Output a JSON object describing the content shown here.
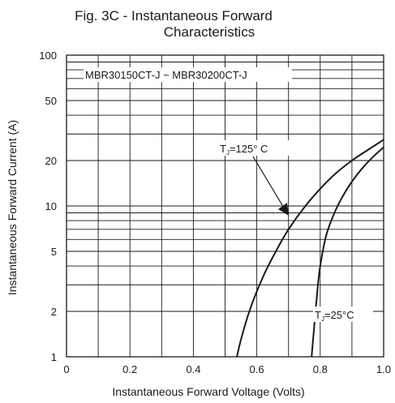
{
  "chart_data": {
    "type": "line",
    "title_line1": "Fig. 3C - Instantaneous Forward",
    "title_line2": "Characteristics",
    "xlabel": "Instantaneous Forward Voltage (Volts)",
    "ylabel": "Instantaneous Forward Current (A)",
    "xlim": [
      0,
      1.0
    ],
    "ylim": [
      1,
      100
    ],
    "yscale": "log",
    "grid": true,
    "x_ticks": [
      0,
      0.2,
      0.4,
      0.6,
      0.8,
      1.0
    ],
    "x_tick_labels": [
      "0",
      "0.2",
      "0.4",
      "0.6",
      "0.8",
      "1.0"
    ],
    "y_ticks": [
      1,
      2,
      5,
      10,
      20,
      50,
      100
    ],
    "y_tick_labels": [
      "1",
      "2",
      "5",
      "10",
      "20",
      "50",
      "100"
    ],
    "part_label": "MBR30150CT-J ~ MBR30200CT-J",
    "series": [
      {
        "name": "TJ=125° C",
        "label_main": "T",
        "label_sub": "J",
        "label_rest": "=125° C",
        "x": [
          0.53,
          0.55,
          0.58,
          0.62,
          0.66,
          0.7,
          0.75,
          0.8,
          0.85,
          0.9,
          0.95,
          1.0
        ],
        "y": [
          0.85,
          1.3,
          2.1,
          3.4,
          5.0,
          7.0,
          9.8,
          13.0,
          16.5,
          20.0,
          23.5,
          27.5
        ]
      },
      {
        "name": "TJ=25°C",
        "label_main": "T",
        "label_sub": "J",
        "label_rest": "=25°C",
        "x": [
          0.77,
          0.78,
          0.79,
          0.8,
          0.82,
          0.85,
          0.88,
          0.91,
          0.94,
          0.97,
          1.0
        ],
        "y": [
          0.85,
          1.5,
          2.6,
          4.0,
          6.5,
          9.5,
          12.5,
          15.5,
          18.5,
          21.5,
          24.5
        ]
      }
    ]
  }
}
